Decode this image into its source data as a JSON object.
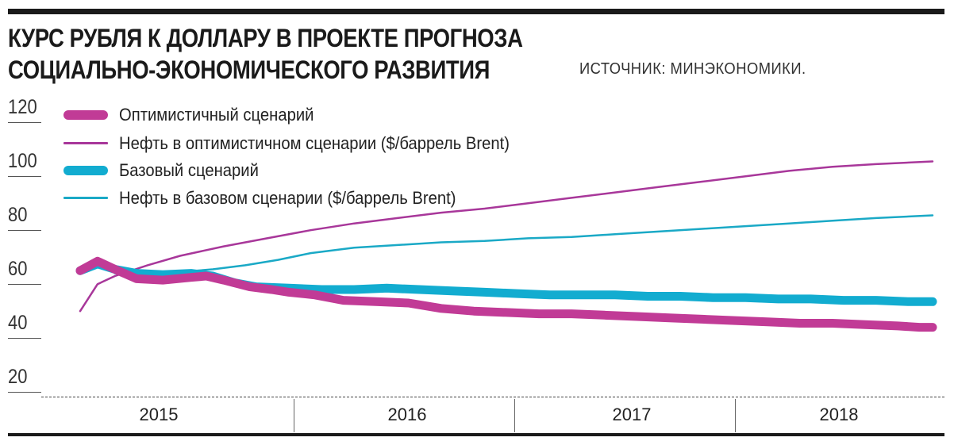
{
  "header": {
    "title_line1": "КУРС РУБЛЯ К ДОЛЛАРУ В ПРОЕКТЕ ПРОГНОЗА",
    "title_line2": "СОЦИАЛЬНО-ЭКОНОМИЧЕСКОГО РАЗВИТИЯ",
    "source": "ИСТОЧНИК: МИНЭКОНОМИКИ."
  },
  "colors": {
    "optimistic": "#c13b96",
    "oil_optimistic": "#a8379a",
    "base": "#12acd0",
    "oil_base": "#1aa9c6"
  },
  "chart_data": {
    "type": "line",
    "title": "КУРС РУБЛЯ К ДОЛЛАРУ В ПРОЕКТЕ ПРОГНОЗА СОЦИАЛЬНО-ЭКОНОМИЧЕСКОГО РАЗВИТИЯ",
    "xlabel": "",
    "ylabel": "",
    "ylim": [
      20,
      120
    ],
    "yticks": [
      120,
      100,
      80,
      60,
      40,
      20
    ],
    "xlim": [
      2015.0,
      2019.0
    ],
    "year_labels": [
      "2015",
      "2016",
      "2017",
      "2018"
    ],
    "legend": "top-left",
    "series": [
      {
        "name": "Оптимистичный сценарий",
        "style": "thick",
        "x": [
          2015.04,
          2015.12,
          2015.2,
          2015.3,
          2015.42,
          2015.55,
          2015.62,
          2015.7,
          2015.82,
          2015.92,
          2016.0,
          2016.12,
          2016.25,
          2016.4,
          2016.55,
          2016.7,
          2016.85,
          2017.0,
          2017.15,
          2017.3,
          2017.45,
          2017.6,
          2017.75,
          2017.9,
          2018.05,
          2018.2,
          2018.35,
          2018.5,
          2018.65,
          2018.8,
          2018.9,
          2018.96
        ],
        "y": [
          62.0,
          65.5,
          62.5,
          59.0,
          58.5,
          59.5,
          60.0,
          58.5,
          56.0,
          55.0,
          54.0,
          53.0,
          51.0,
          50.5,
          50.0,
          48.0,
          47.0,
          46.5,
          46.0,
          46.0,
          45.5,
          45.0,
          44.5,
          44.0,
          43.5,
          43.0,
          42.5,
          42.5,
          42.0,
          41.5,
          41.0,
          41.0
        ]
      },
      {
        "name": "Нефть в оптимистичном сценарии ($/баррель Brent)",
        "style": "thin",
        "x": [
          2015.04,
          2015.12,
          2015.2,
          2015.35,
          2015.5,
          2015.7,
          2015.9,
          2016.1,
          2016.3,
          2016.5,
          2016.7,
          2016.9,
          2017.1,
          2017.3,
          2017.5,
          2017.7,
          2017.9,
          2018.1,
          2018.3,
          2018.5,
          2018.7,
          2018.96
        ],
        "y": [
          47.0,
          57.0,
          60.0,
          64.0,
          67.5,
          71.0,
          74.0,
          77.0,
          79.5,
          81.5,
          83.5,
          85.0,
          87.0,
          89.0,
          91.0,
          93.0,
          95.0,
          97.0,
          99.0,
          100.5,
          101.5,
          102.5
        ]
      },
      {
        "name": "Базовый сценарий",
        "style": "thick",
        "x": [
          2015.04,
          2015.12,
          2015.2,
          2015.3,
          2015.42,
          2015.55,
          2015.65,
          2015.75,
          2015.85,
          2016.0,
          2016.15,
          2016.3,
          2016.45,
          2016.6,
          2016.75,
          2016.9,
          2017.05,
          2017.2,
          2017.35,
          2017.5,
          2017.65,
          2017.8,
          2017.95,
          2018.1,
          2018.25,
          2018.4,
          2018.55,
          2018.7,
          2018.85,
          2018.96
        ],
        "y": [
          62.0,
          64.5,
          62.5,
          61.0,
          60.5,
          61.0,
          60.0,
          57.5,
          56.0,
          55.5,
          55.0,
          55.0,
          55.5,
          55.0,
          54.5,
          54.0,
          53.5,
          53.0,
          53.0,
          53.0,
          52.5,
          52.5,
          52.0,
          52.0,
          51.5,
          51.5,
          51.0,
          51.0,
          50.5,
          50.5
        ]
      },
      {
        "name": "Нефть в базовом сценарии ($/баррель Brent)",
        "style": "thin",
        "x": [
          2015.2,
          2015.35,
          2015.5,
          2015.65,
          2015.8,
          2015.95,
          2016.1,
          2016.3,
          2016.5,
          2016.7,
          2016.9,
          2017.1,
          2017.3,
          2017.5,
          2017.7,
          2017.9,
          2018.1,
          2018.3,
          2018.5,
          2018.7,
          2018.96
        ],
        "y": [
          61.0,
          61.0,
          61.5,
          62.5,
          64.0,
          66.0,
          68.5,
          70.5,
          71.5,
          72.5,
          73.0,
          74.0,
          74.5,
          75.5,
          76.5,
          77.5,
          78.5,
          79.5,
          80.5,
          81.5,
          82.5
        ]
      }
    ]
  }
}
